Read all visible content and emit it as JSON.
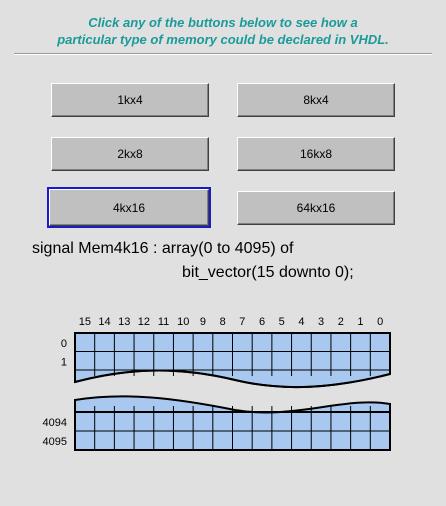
{
  "instructions": {
    "line1": "Click any of the buttons below to see how a",
    "line2": "particular type of memory could be declared in VHDL."
  },
  "buttons": [
    {
      "label": "1kx4"
    },
    {
      "label": "8kx4"
    },
    {
      "label": "2kx8"
    },
    {
      "label": "16kx8"
    },
    {
      "label": "4kx16",
      "selected": true
    },
    {
      "label": "64kx16"
    }
  ],
  "declaration": {
    "line1": "signal Mem4k16 : array(0 to 4095) of",
    "line2": "bit_vector(15 downto 0);"
  },
  "diagram": {
    "bit_labels": [
      "15",
      "14",
      "13",
      "12",
      "11",
      "10",
      "9",
      "8",
      "7",
      "6",
      "5",
      "4",
      "3",
      "2",
      "1",
      "0"
    ],
    "top_row_labels": [
      "0",
      "1"
    ],
    "bottom_row_labels": [
      "4094",
      "4095"
    ],
    "cell_color": "#a8c8f0",
    "line_color": "#000000"
  }
}
